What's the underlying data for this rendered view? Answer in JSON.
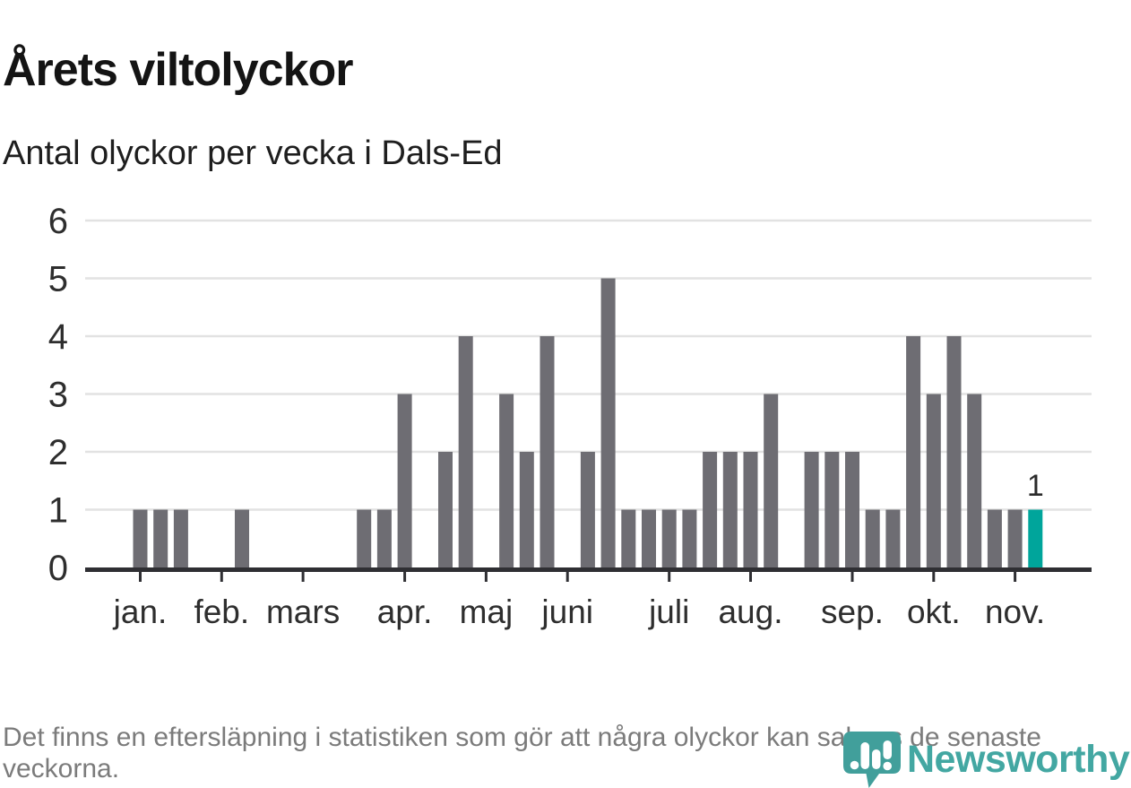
{
  "header": {
    "title": "Årets viltolyckor",
    "subtitle": "Antal olyckor per vecka i Dals-Ed"
  },
  "chart_data": {
    "type": "bar",
    "title": "Årets viltolyckor",
    "subtitle": "Antal olyckor per vecka i Dals-Ed",
    "x_unit": "vecka",
    "categories_note": "one bar per week, weeks 1-45",
    "values": [
      1,
      1,
      1,
      0,
      0,
      1,
      0,
      0,
      0,
      0,
      0,
      1,
      1,
      3,
      0,
      2,
      4,
      0,
      3,
      2,
      4,
      0,
      2,
      5,
      1,
      1,
      1,
      1,
      2,
      2,
      2,
      3,
      0,
      2,
      2,
      2,
      1,
      1,
      4,
      3,
      4,
      3,
      1,
      1,
      1
    ],
    "highlight": {
      "week": 45,
      "value": 1,
      "label": "1"
    },
    "ylim": [
      0,
      6
    ],
    "y_ticks": [
      0,
      1,
      2,
      3,
      4,
      5,
      6
    ],
    "grid": "horizontal",
    "legend": "none",
    "month_ticks": [
      {
        "label": "jan.",
        "week": 1
      },
      {
        "label": "feb.",
        "week": 5
      },
      {
        "label": "mars",
        "week": 9
      },
      {
        "label": "apr.",
        "week": 14
      },
      {
        "label": "maj",
        "week": 18
      },
      {
        "label": "juni",
        "week": 22
      },
      {
        "label": "juli",
        "week": 27
      },
      {
        "label": "aug.",
        "week": 31
      },
      {
        "label": "sep.",
        "week": 36
      },
      {
        "label": "okt.",
        "week": 40
      },
      {
        "label": "nov.",
        "week": 44
      }
    ],
    "colors": {
      "bar": "#6e6d73",
      "highlight": "#00a59b",
      "grid": "#e2e2e2",
      "axis": "#2f2f33",
      "tick_text": "#2e2e2e",
      "annotation_text": "#2b2b2b"
    }
  },
  "footer": {
    "note": "Det finns en eftersläpning i statistiken som gör att några olyckor kan saknas de senaste veckorna."
  },
  "branding": {
    "name": "Newsworthy",
    "color": "#43a7a2",
    "icon": "speech-bubble-bar-chart"
  }
}
